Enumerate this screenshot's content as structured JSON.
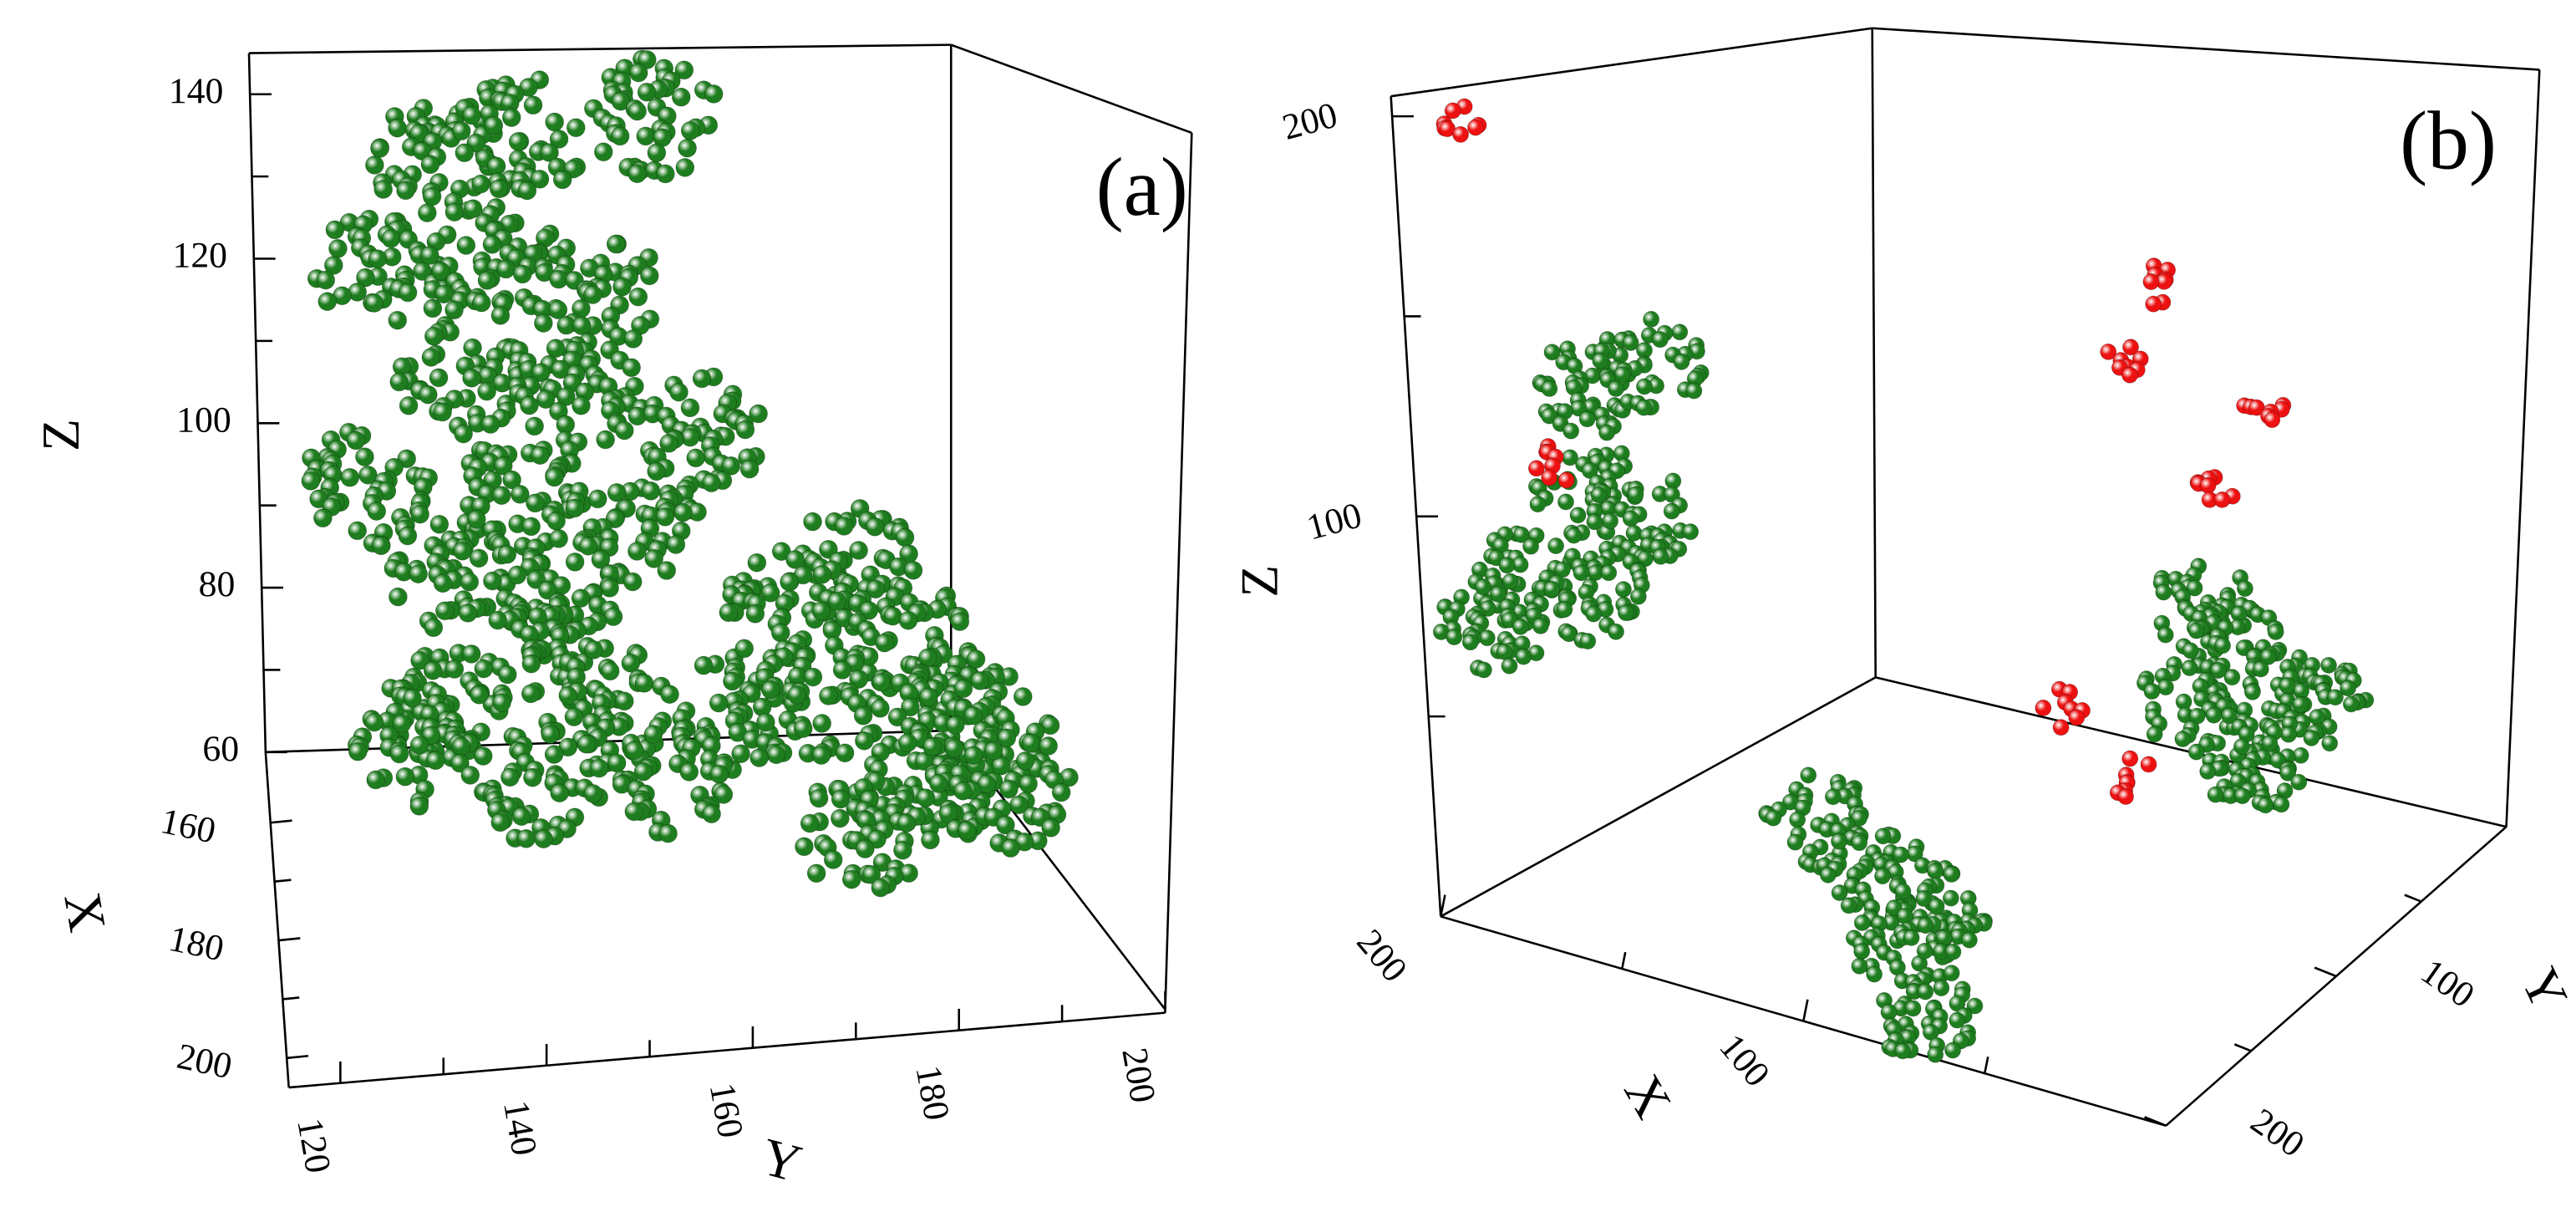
{
  "chart_data": [
    {
      "type": "scatter3d",
      "panel_label": "(a)",
      "xlabel": "X",
      "ylabel": "Y",
      "zlabel": "Z",
      "xlim": [
        148,
        205
      ],
      "ylim": [
        115,
        200
      ],
      "zlim": [
        60,
        145
      ],
      "xticks": [
        160,
        180,
        200
      ],
      "yticks": [
        120,
        140,
        160,
        180,
        200
      ],
      "zticks": [
        60,
        80,
        100,
        120,
        140
      ],
      "xminorticks": [
        170,
        190
      ],
      "yminorticks": [
        130,
        150,
        170,
        190
      ],
      "zminorticks": [
        70,
        90,
        110,
        130
      ],
      "series": [
        {
          "color": "#1e7d1e",
          "x": [
            155,
            155,
            155,
            155,
            155,
            155,
            155,
            155,
            155,
            155,
            155,
            155,
            155,
            155,
            155,
            155,
            155,
            155,
            155,
            155,
            155,
            155,
            165,
            170,
            165,
            155,
            160,
            160,
            155,
            155
          ],
          "y": [
            133,
            141,
            154,
            127,
            138,
            148,
            135,
            146,
            158,
            125,
            140,
            151,
            133,
            143,
            141,
            132,
            148,
            161,
            166,
            172,
            178,
            185,
            178,
            172,
            186,
            130,
            153,
            141,
            169,
            182
          ],
          "z": [
            135,
            137,
            138,
            122,
            122,
            117,
            108,
            105,
            99,
            96,
            94,
            89,
            85,
            81,
            73,
            69,
            67,
            65,
            77,
            82,
            71,
            60,
            60,
            60,
            60,
            64,
            61,
            62,
            66,
            63
          ]
        }
      ]
    },
    {
      "type": "scatter3d",
      "panel_label": "(b)",
      "xlabel": "X",
      "ylabel": "Y",
      "zlabel": "Z",
      "xlim": [
        200,
        0
      ],
      "ylim": [
        200,
        0
      ],
      "zlim": [
        0,
        205
      ],
      "xticks": [
        200,
        100
      ],
      "yticks": [
        200,
        100
      ],
      "zticks": [
        200,
        100
      ],
      "xminorticks": [
        150,
        50
      ],
      "yminorticks": [
        150,
        50
      ],
      "zminorticks": [
        50,
        150
      ],
      "series": [
        {
          "color": "#1e7d1e",
          "x": [
            190,
            190,
            190,
            190,
            190,
            190,
            190,
            134,
            111,
            87,
            67,
            89,
            10,
            10,
            10,
            10,
            10,
            10
          ],
          "y": [
            121,
            84,
            124,
            94,
            162,
            123,
            181,
            117,
            135,
            166,
            198,
            143,
            142,
            126,
            154,
            110,
            83,
            121
          ],
          "z": [
            105,
            97,
            81,
            63,
            73,
            54,
            68,
            10,
            10,
            10,
            10,
            10,
            105,
            88,
            85,
            66,
            60,
            57
          ]
        },
        {
          "color": "#ee1111",
          "x": [
            190,
            190,
            10,
            10,
            10,
            10,
            111,
            80
          ],
          "y": [
            180,
            143,
            158,
            178,
            100,
            129,
            24,
            49
          ],
          "z": [
            195,
            94,
            192,
            180,
            141,
            130,
            10,
            10
          ]
        }
      ]
    }
  ]
}
